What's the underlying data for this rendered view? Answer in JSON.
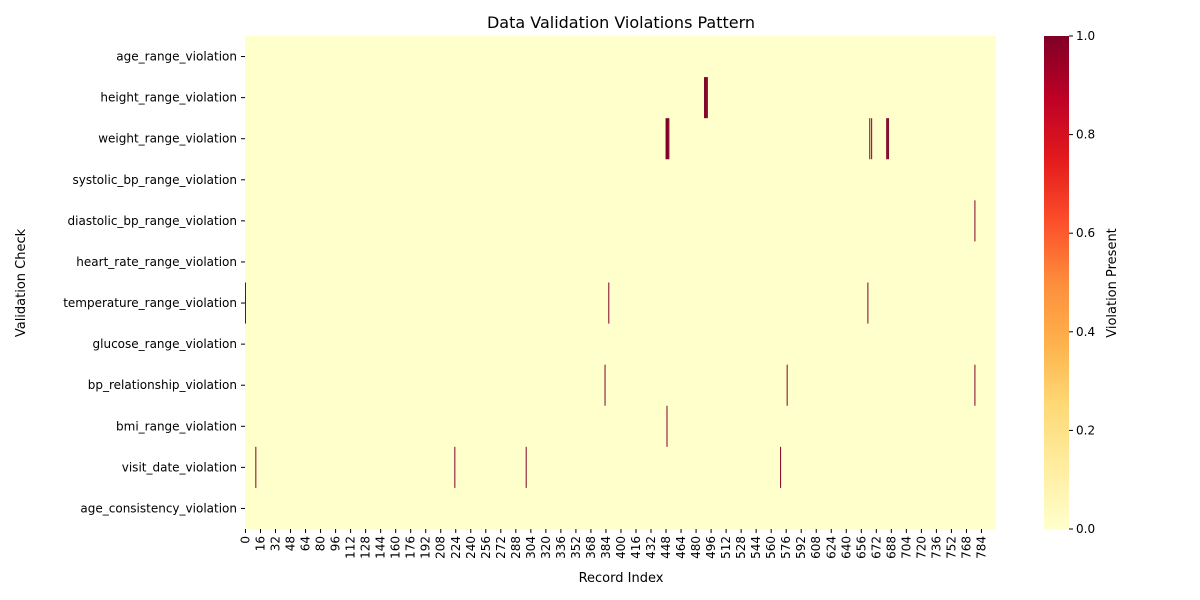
{
  "chart_data": {
    "type": "heatmap",
    "title": "Data Validation Violations Pattern",
    "xlabel": "Record Index",
    "ylabel": "Validation Check",
    "colorbar_label": "Violation Present",
    "colormap": "YlOrRd",
    "zlim": [
      0,
      1
    ],
    "colorbar_ticks": [
      "0.0",
      "0.2",
      "0.4",
      "0.6",
      "0.8",
      "1.0"
    ],
    "n_records": 800,
    "x_tick_step": 16,
    "x_tick_labels": [
      "0",
      "16",
      "32",
      "48",
      "64",
      "80",
      "96",
      "112",
      "128",
      "144",
      "160",
      "176",
      "192",
      "208",
      "224",
      "240",
      "256",
      "272",
      "288",
      "304",
      "320",
      "336",
      "352",
      "368",
      "384",
      "400",
      "416",
      "432",
      "448",
      "464",
      "480",
      "496",
      "512",
      "528",
      "544",
      "560",
      "576",
      "592",
      "608",
      "624",
      "640",
      "656",
      "672",
      "688",
      "704",
      "720",
      "736",
      "752",
      "768",
      "784"
    ],
    "rows": [
      {
        "name": "age_range_violation",
        "violations": []
      },
      {
        "name": "height_range_violation",
        "violations": [
          489,
          490,
          491,
          492
        ]
      },
      {
        "name": "weight_range_violation",
        "violations": [
          448,
          449,
          450,
          451,
          665,
          667,
          683,
          684,
          685
        ]
      },
      {
        "name": "systolic_bp_range_violation",
        "violations": []
      },
      {
        "name": "diastolic_bp_range_violation",
        "violations": [
          777
        ]
      },
      {
        "name": "heart_rate_range_violation",
        "violations": []
      },
      {
        "name": "temperature_range_violation",
        "violations": [
          0,
          387,
          663
        ]
      },
      {
        "name": "glucose_range_violation",
        "violations": []
      },
      {
        "name": "bp_relationship_violation",
        "violations": [
          383,
          577,
          777
        ]
      },
      {
        "name": "bmi_range_violation",
        "violations": [
          449
        ]
      },
      {
        "name": "visit_date_violation",
        "violations": [
          11,
          223,
          299,
          570
        ]
      },
      {
        "name": "age_consistency_violation",
        "violations": []
      }
    ],
    "colors": {
      "low": "#ffffcc",
      "high": "#800026"
    }
  }
}
